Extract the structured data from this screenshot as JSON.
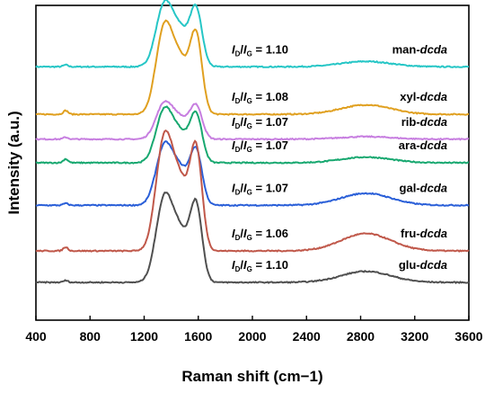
{
  "chart_data": {
    "type": "line",
    "title": "",
    "xlabel": "Raman shift (cm−1)",
    "ylabel": "Intensity (a.u.)",
    "xlim": [
      400,
      3600
    ],
    "xticks": [
      400,
      800,
      1200,
      1600,
      2000,
      2400,
      2800,
      3200,
      3600
    ],
    "y_ticks_shown": false,
    "grid": false,
    "legend": "inline labels on right",
    "series": [
      {
        "name": "man-dcda",
        "prefix": "man-",
        "suffix": "dcda",
        "color": "#26c6c6",
        "ratio_value": "1.10",
        "baseline": 0.195,
        "d_peak": 0.2,
        "g_peak": 0.19,
        "valley": 0.125,
        "band_2d": 0.017
      },
      {
        "name": "xyl-dcda",
        "prefix": "xyl-",
        "suffix": "dcda",
        "color": "#e0a020",
        "ratio_value": "1.08",
        "baseline": 0.346,
        "d_peak": 0.28,
        "g_peak": 0.26,
        "valley": 0.18,
        "band_2d": 0.03
      },
      {
        "name": "rib-dcda",
        "prefix": "rib-",
        "suffix": "dcda",
        "color": "#c77ee0",
        "ratio_value": "1.07",
        "baseline": 0.425,
        "d_peak": 0.115,
        "g_peak": 0.11,
        "valley": 0.07,
        "band_2d": 0.008
      },
      {
        "name": "ara-dcda",
        "prefix": "ara-",
        "suffix": "dcda",
        "color": "#18a870",
        "ratio_value": "1.07",
        "baseline": 0.5,
        "d_peak": 0.17,
        "g_peak": 0.16,
        "valley": 0.1,
        "band_2d": 0.018
      },
      {
        "name": "gal-dcda",
        "prefix": "gal-",
        "suffix": "dcda",
        "color": "#2a5fd8",
        "ratio_value": "1.07",
        "baseline": 0.635,
        "d_peak": 0.19,
        "g_peak": 0.18,
        "valley": 0.12,
        "band_2d": 0.038
      },
      {
        "name": "fru-dcda",
        "prefix": "fru-",
        "suffix": "dcda",
        "color": "#c0584a",
        "ratio_value": "1.06",
        "baseline": 0.78,
        "d_peak": 0.36,
        "g_peak": 0.335,
        "valley": 0.23,
        "band_2d": 0.055
      },
      {
        "name": "glu-dcda",
        "prefix": "glu-",
        "suffix": "dcda",
        "color": "#505050",
        "ratio_value": "1.10",
        "baseline": 0.88,
        "d_peak": 0.27,
        "g_peak": 0.255,
        "valley": 0.17,
        "band_2d": 0.035
      }
    ],
    "ratio_label_text": {
      "i1": "I",
      "s1": "D",
      "slash": "/",
      "i2": "I",
      "s2": "G",
      "eq": " = "
    }
  }
}
